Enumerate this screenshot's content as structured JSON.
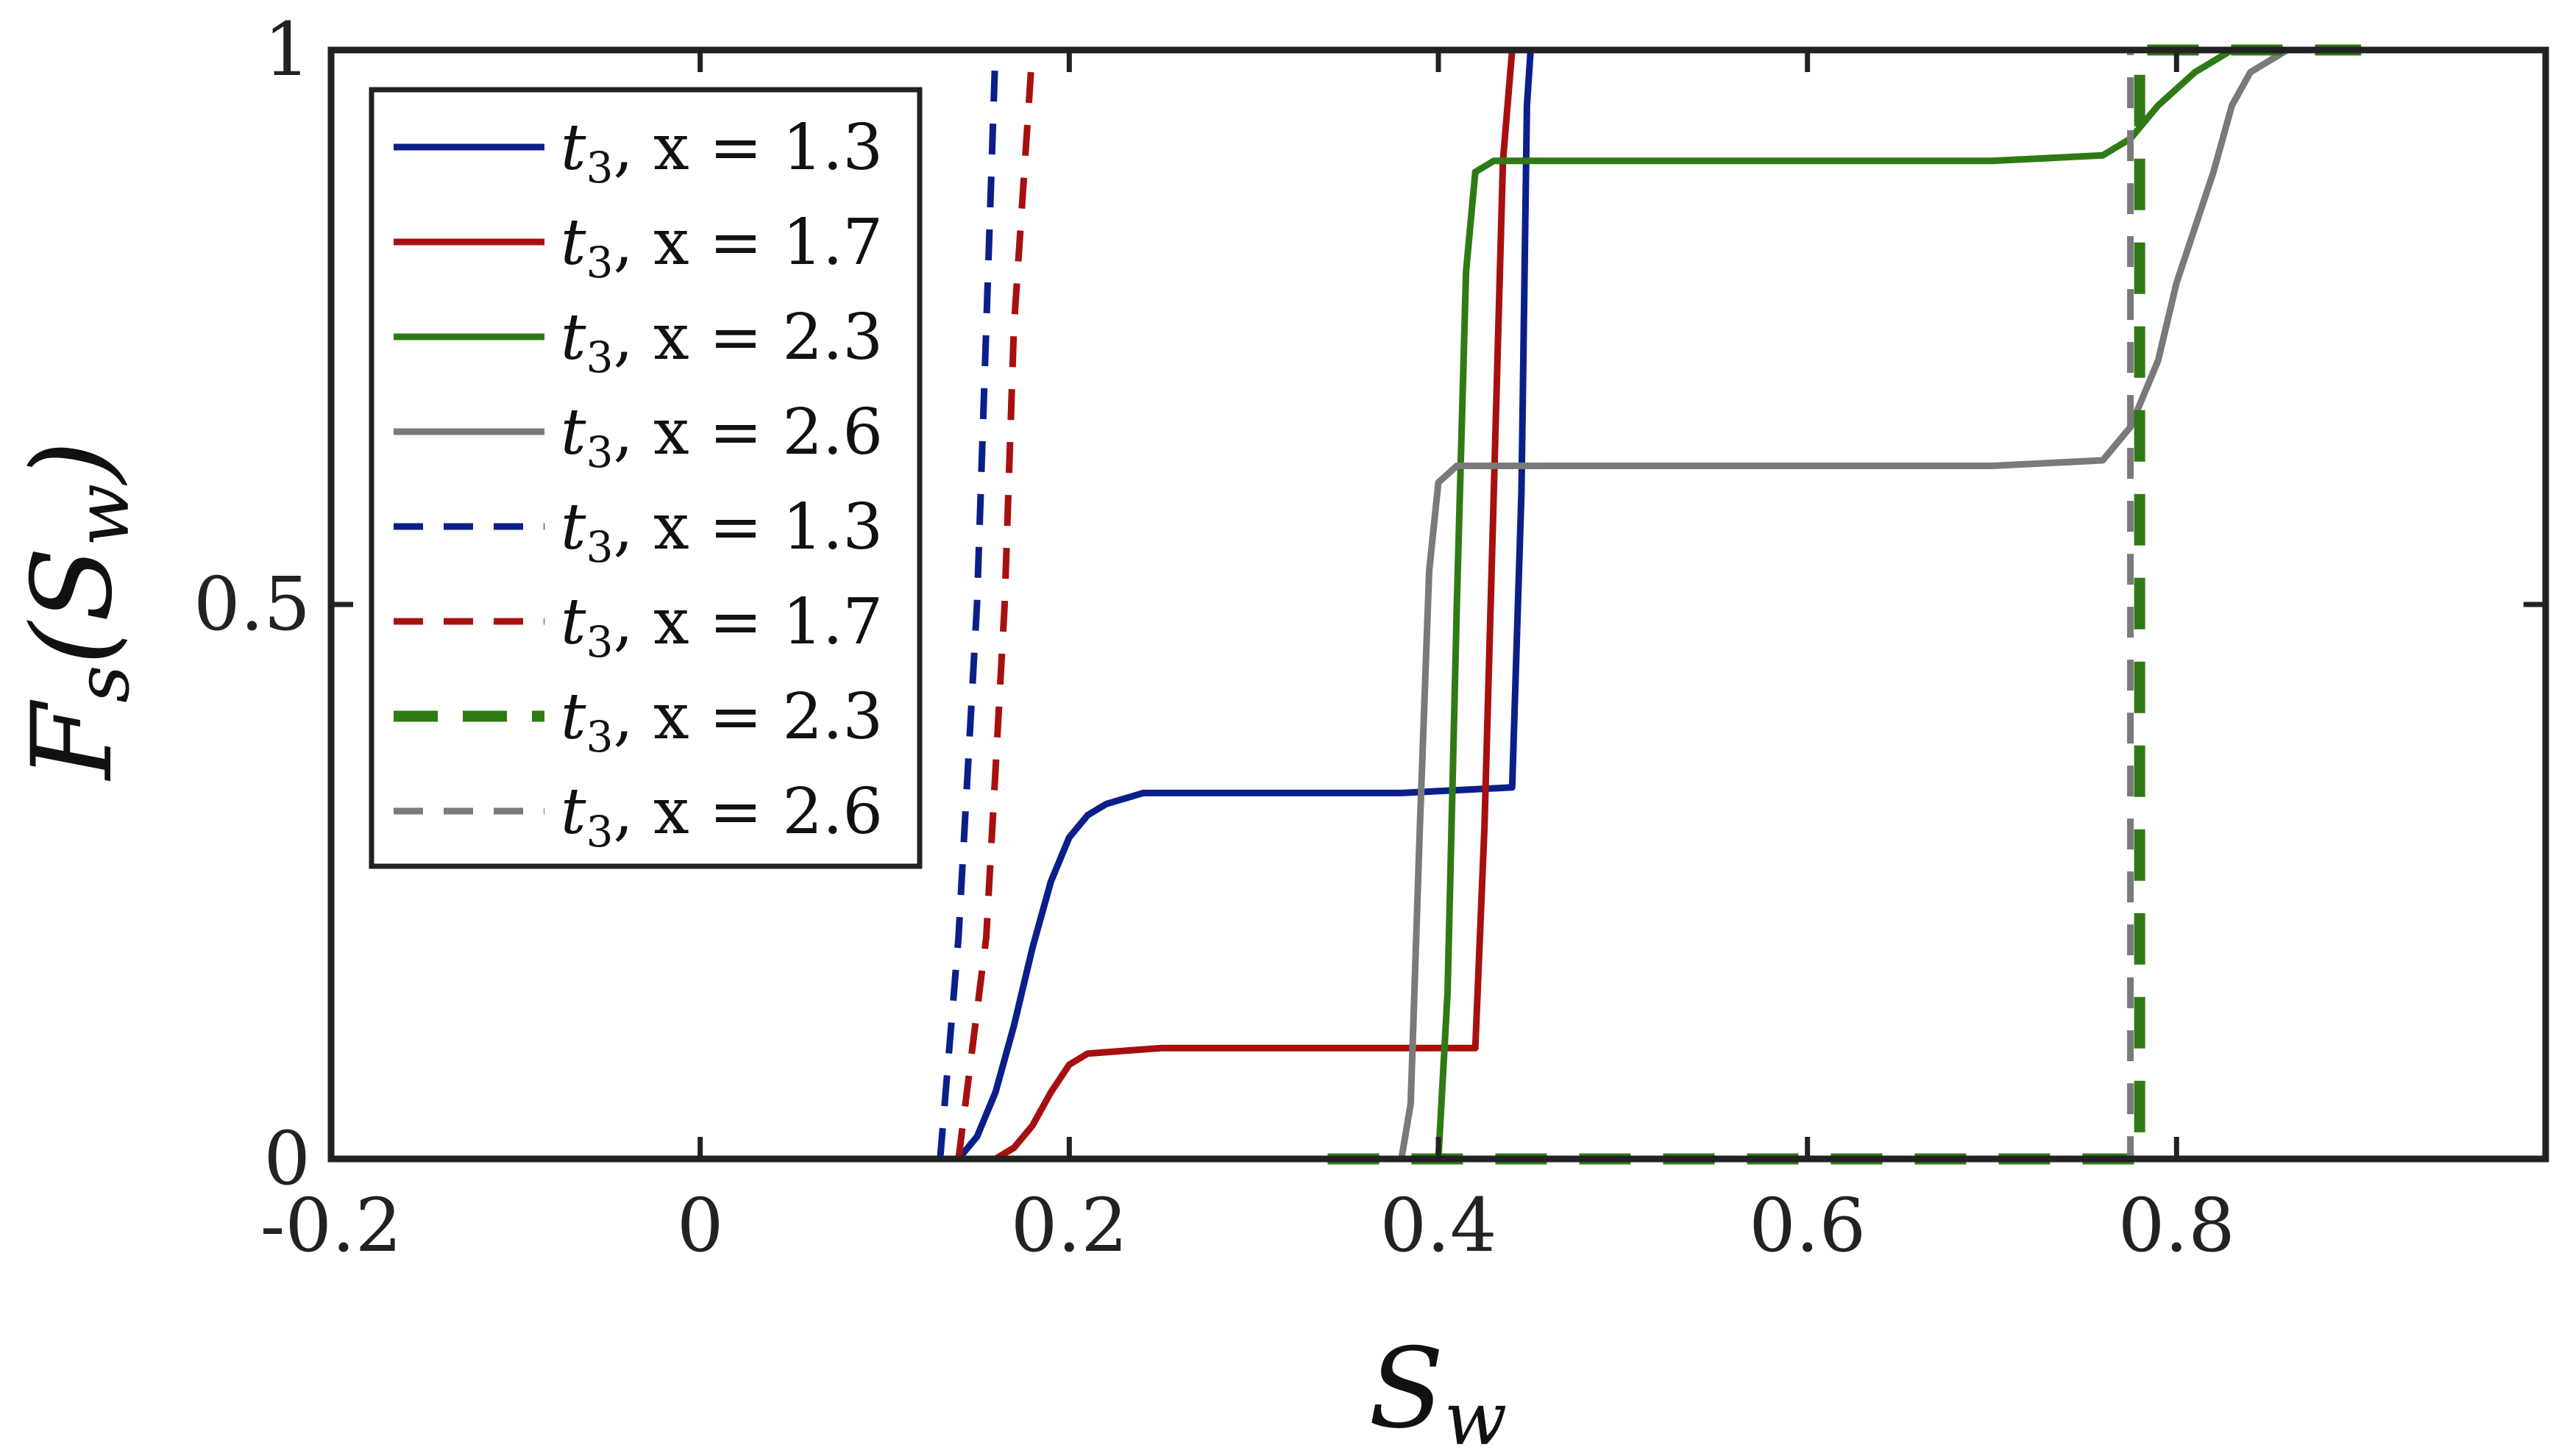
{
  "chart_data": {
    "type": "line",
    "xlabel": "S",
    "xlabel_sub": "w",
    "ylabel": "F",
    "ylabel_sub": "s",
    "ylabel_arg": "S",
    "ylabel_arg_sub": "w",
    "xlim": [
      -0.2,
      1.0
    ],
    "ylim": [
      0,
      1
    ],
    "xticks": [
      -0.2,
      0,
      0.2,
      0.4,
      0.6,
      0.8
    ],
    "xtick_labels": [
      "-0.2",
      "0",
      "0.2",
      "0.4",
      "0.6",
      "0.8"
    ],
    "yticks": [
      0,
      0.5,
      1
    ],
    "ytick_labels": [
      "0",
      "0.5",
      "1"
    ],
    "grid": false,
    "legend_position": "top-left",
    "series": [
      {
        "name": "t3, x = 1.3",
        "base": "t",
        "sub": "3",
        "eq": ", x = 1.3",
        "color": "#0b1f8a",
        "style": "solid",
        "width": 9,
        "points": [
          [
            0.1,
            0
          ],
          [
            0.14,
            0
          ],
          [
            0.15,
            0.02
          ],
          [
            0.16,
            0.06
          ],
          [
            0.17,
            0.12
          ],
          [
            0.18,
            0.19
          ],
          [
            0.19,
            0.25
          ],
          [
            0.2,
            0.29
          ],
          [
            0.21,
            0.31
          ],
          [
            0.22,
            0.32
          ],
          [
            0.24,
            0.33
          ],
          [
            0.3,
            0.33
          ],
          [
            0.38,
            0.33
          ],
          [
            0.44,
            0.335
          ],
          [
            0.445,
            0.6
          ],
          [
            0.448,
            0.95
          ],
          [
            0.45,
            1.0
          ],
          [
            0.46,
            1.0
          ]
        ]
      },
      {
        "name": "t3, x = 1.7",
        "base": "t",
        "sub": "3",
        "eq": ", x = 1.7",
        "color": "#a80f0f",
        "style": "solid",
        "width": 9,
        "points": [
          [
            0.1,
            0
          ],
          [
            0.16,
            0
          ],
          [
            0.17,
            0.01
          ],
          [
            0.18,
            0.03
          ],
          [
            0.19,
            0.06
          ],
          [
            0.2,
            0.085
          ],
          [
            0.21,
            0.095
          ],
          [
            0.25,
            0.1
          ],
          [
            0.32,
            0.1
          ],
          [
            0.42,
            0.1
          ],
          [
            0.425,
            0.3
          ],
          [
            0.43,
            0.6
          ],
          [
            0.435,
            0.9
          ],
          [
            0.44,
            1.0
          ],
          [
            0.45,
            1.0
          ]
        ]
      },
      {
        "name": "t3, x = 2.3",
        "base": "t",
        "sub": "3",
        "eq": ", x = 2.3",
        "color": "#2f7a14",
        "style": "solid",
        "width": 9,
        "points": [
          [
            0.34,
            0
          ],
          [
            0.4,
            0
          ],
          [
            0.405,
            0.15
          ],
          [
            0.41,
            0.5
          ],
          [
            0.415,
            0.8
          ],
          [
            0.42,
            0.89
          ],
          [
            0.43,
            0.9
          ],
          [
            0.5,
            0.9
          ],
          [
            0.6,
            0.9
          ],
          [
            0.7,
            0.9
          ],
          [
            0.76,
            0.905
          ],
          [
            0.775,
            0.92
          ],
          [
            0.79,
            0.95
          ],
          [
            0.81,
            0.98
          ],
          [
            0.83,
            1.0
          ],
          [
            0.87,
            1.0
          ]
        ]
      },
      {
        "name": "t3, x = 2.6",
        "base": "t",
        "sub": "3",
        "eq": ", x = 2.6",
        "color": "#7a7a7a",
        "style": "solid",
        "width": 9,
        "points": [
          [
            0.34,
            0
          ],
          [
            0.38,
            0
          ],
          [
            0.385,
            0.05
          ],
          [
            0.39,
            0.3
          ],
          [
            0.395,
            0.53
          ],
          [
            0.4,
            0.61
          ],
          [
            0.41,
            0.625
          ],
          [
            0.5,
            0.625
          ],
          [
            0.6,
            0.625
          ],
          [
            0.7,
            0.625
          ],
          [
            0.76,
            0.63
          ],
          [
            0.775,
            0.66
          ],
          [
            0.79,
            0.72
          ],
          [
            0.8,
            0.79
          ],
          [
            0.82,
            0.89
          ],
          [
            0.83,
            0.95
          ],
          [
            0.84,
            0.98
          ],
          [
            0.86,
            1.0
          ],
          [
            0.9,
            1.0
          ]
        ]
      },
      {
        "name": "t3, x = 1.3",
        "base": "t",
        "sub": "3",
        "eq": ", x = 1.3",
        "color": "#0b1f8a",
        "style": "dashed",
        "width": 9,
        "points": [
          [
            0.13,
            0
          ],
          [
            0.14,
            0.2
          ],
          [
            0.15,
            0.5
          ],
          [
            0.155,
            0.75
          ],
          [
            0.16,
            1.0
          ],
          [
            0.3,
            1.0
          ],
          [
            0.44,
            1.0
          ]
        ]
      },
      {
        "name": "t3, x = 1.7",
        "base": "t",
        "sub": "3",
        "eq": ", x = 1.7",
        "color": "#a80f0f",
        "style": "dashed",
        "width": 9,
        "points": [
          [
            0.14,
            0
          ],
          [
            0.155,
            0.2
          ],
          [
            0.165,
            0.5
          ],
          [
            0.17,
            0.75
          ],
          [
            0.18,
            1.0
          ],
          [
            0.3,
            1.0
          ],
          [
            0.45,
            1.0
          ]
        ]
      },
      {
        "name": "t3, x = 2.3",
        "base": "t",
        "sub": "3",
        "eq": ", x = 2.3",
        "color": "#2f7a14",
        "style": "dashed-thick",
        "width": 15,
        "points": [
          [
            0.34,
            0
          ],
          [
            0.5,
            0
          ],
          [
            0.65,
            0
          ],
          [
            0.78,
            0
          ],
          [
            0.78,
            0.5
          ],
          [
            0.78,
            1.0
          ],
          [
            0.85,
            1.0
          ],
          [
            0.9,
            1.0
          ]
        ]
      },
      {
        "name": "t3, x = 2.6",
        "base": "t",
        "sub": "3",
        "eq": ", x = 2.6",
        "color": "#7a7a7a",
        "style": "dashed",
        "width": 9,
        "points": [
          [
            0.34,
            0
          ],
          [
            0.5,
            0
          ],
          [
            0.65,
            0
          ],
          [
            0.775,
            0
          ],
          [
            0.775,
            0.5
          ],
          [
            0.775,
            1.0
          ],
          [
            0.85,
            1.0
          ],
          [
            0.9,
            1.0
          ]
        ]
      }
    ]
  }
}
